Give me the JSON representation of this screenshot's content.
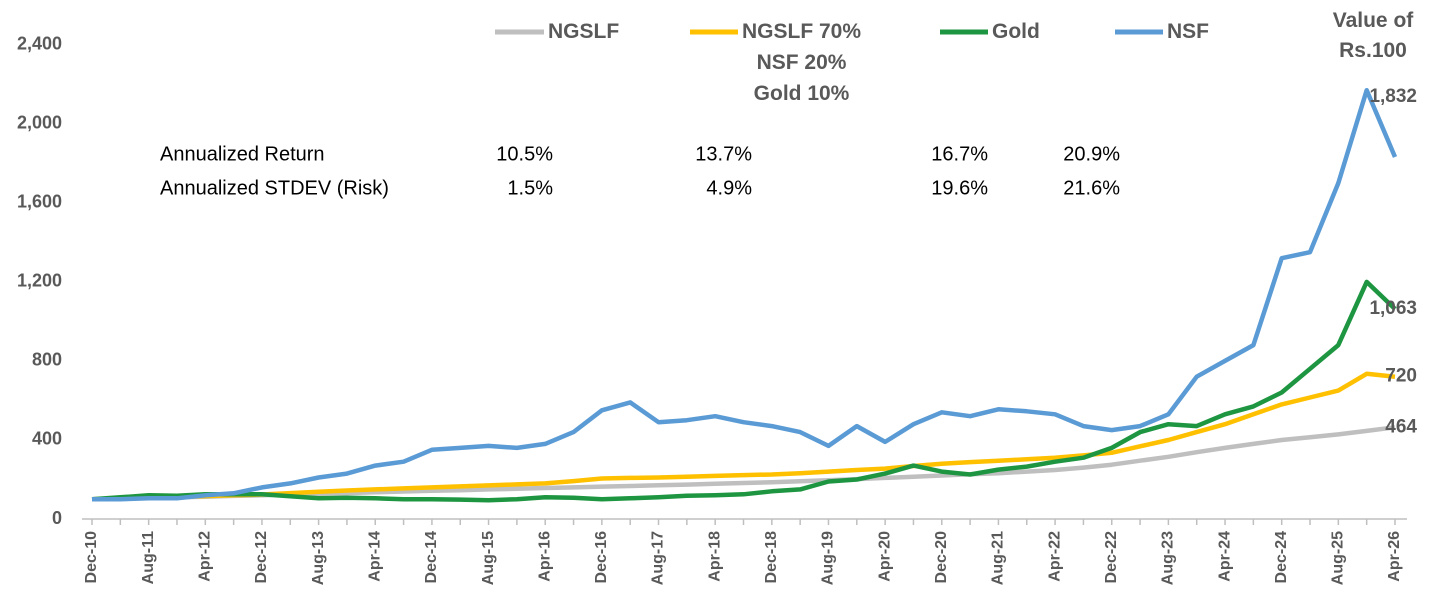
{
  "chart_data": {
    "type": "line",
    "y_axis_label": "Value of Rs.100",
    "categories": [
      "Dec-10",
      null,
      "Aug-11",
      null,
      "Apr-12",
      null,
      "Dec-12",
      null,
      "Aug-13",
      null,
      "Apr-14",
      null,
      "Dec-14",
      null,
      "Aug-15",
      null,
      "Apr-16",
      null,
      "Dec-16",
      null,
      "Aug-17",
      null,
      "Apr-18",
      null,
      "Dec-18",
      null,
      "Aug-19",
      null,
      "Apr-20",
      null,
      "Dec-20",
      null,
      "Aug-21",
      null,
      "Apr-22",
      null,
      "Dec-22",
      null,
      "Aug-23",
      null,
      "Apr-24",
      null,
      "Dec-24",
      null,
      "Aug-25",
      null,
      "Apr-26"
    ],
    "series": [
      {
        "name": "NGSLF",
        "color": "#bfbfbf",
        "values": [
          100,
          103,
          106,
          110,
          113,
          117,
          120,
          124,
          128,
          131,
          135,
          139,
          143,
          146,
          150,
          153,
          157,
          160,
          164,
          167,
          171,
          174,
          178,
          182,
          186,
          191,
          196,
          202,
          208,
          214,
          220,
          226,
          232,
          240,
          248,
          260,
          275,
          295,
          315,
          338,
          360,
          380,
          400,
          414,
          428,
          446,
          464
        ],
        "value_labels": [
          null,
          null,
          null,
          null,
          null,
          null,
          null,
          null,
          null,
          null,
          null,
          null,
          null,
          null,
          null,
          null,
          null,
          null,
          null,
          null,
          null,
          null,
          null,
          null,
          null,
          null,
          null,
          null,
          null,
          null,
          null,
          null,
          null,
          null,
          null,
          null,
          null,
          null,
          null,
          null,
          null,
          null,
          null,
          null,
          null,
          null,
          "464"
        ]
      },
      {
        "name": "NGSLF 70%\nNSF 20%\nGold 10%",
        "color": "#ffc000",
        "values": [
          100,
          104,
          108,
          112,
          116,
          120,
          124,
          131,
          138,
          144,
          150,
          155,
          160,
          165,
          170,
          175,
          180,
          192,
          205,
          208,
          210,
          214,
          218,
          222,
          225,
          232,
          240,
          248,
          255,
          268,
          280,
          288,
          295,
          302,
          310,
          322,
          335,
          368,
          400,
          440,
          480,
          530,
          580,
          615,
          650,
          735,
          720
        ],
        "value_labels": [
          null,
          null,
          null,
          null,
          null,
          null,
          null,
          null,
          null,
          null,
          null,
          null,
          null,
          null,
          null,
          null,
          null,
          null,
          null,
          null,
          null,
          null,
          null,
          null,
          null,
          null,
          null,
          null,
          null,
          null,
          null,
          null,
          null,
          null,
          null,
          null,
          null,
          null,
          null,
          null,
          null,
          null,
          null,
          null,
          null,
          null,
          "720"
        ]
      },
      {
        "name": "Gold",
        "color": "#1e9641",
        "values": [
          100,
          110,
          120,
          118,
          125,
          125,
          125,
          115,
          105,
          108,
          105,
          100,
          100,
          98,
          95,
          100,
          110,
          108,
          100,
          105,
          110,
          118,
          120,
          125,
          140,
          150,
          190,
          200,
          230,
          270,
          240,
          225,
          250,
          265,
          290,
          310,
          360,
          440,
          480,
          470,
          530,
          570,
          640,
          760,
          880,
          1200,
          1063
        ],
        "value_labels": [
          null,
          null,
          null,
          null,
          null,
          null,
          null,
          null,
          null,
          null,
          null,
          null,
          null,
          null,
          null,
          null,
          null,
          null,
          null,
          null,
          null,
          null,
          null,
          null,
          null,
          null,
          null,
          null,
          null,
          null,
          null,
          null,
          null,
          null,
          null,
          null,
          null,
          null,
          null,
          null,
          null,
          null,
          null,
          null,
          null,
          null,
          "1,063"
        ]
      },
      {
        "name": "NSF",
        "color": "#5b9bd5",
        "values": [
          100,
          100,
          105,
          105,
          120,
          130,
          160,
          180,
          210,
          230,
          270,
          290,
          350,
          360,
          370,
          360,
          380,
          440,
          550,
          590,
          490,
          500,
          520,
          490,
          470,
          440,
          370,
          470,
          390,
          480,
          540,
          520,
          555,
          545,
          530,
          470,
          450,
          470,
          530,
          720,
          800,
          880,
          1320,
          1350,
          1700,
          2170,
          1832
        ],
        "value_labels": [
          null,
          null,
          null,
          null,
          null,
          null,
          null,
          null,
          null,
          null,
          null,
          null,
          null,
          null,
          null,
          null,
          null,
          null,
          null,
          null,
          null,
          null,
          null,
          null,
          null,
          null,
          null,
          null,
          null,
          null,
          null,
          null,
          null,
          null,
          null,
          null,
          null,
          null,
          null,
          null,
          null,
          null,
          null,
          null,
          null,
          null,
          "1,832"
        ]
      }
    ],
    "stats": [
      {
        "label": "Annualized Return",
        "values": [
          "10.5%",
          "13.7%",
          "16.7%",
          "20.9%"
        ]
      },
      {
        "label": "Annualized STDEV (Risk)",
        "values": [
          "1.5%",
          "4.9%",
          "19.6%",
          "21.6%"
        ]
      }
    ],
    "ylim": [
      0,
      2500
    ],
    "yticks": [
      0,
      400,
      800,
      {
        "value": 1200,
        "label": "1,200"
      },
      {
        "value": 1600,
        "label": "1,600"
      },
      {
        "value": 2000,
        "label": "2,000"
      },
      {
        "value": 2400,
        "label": "2,400"
      }
    ],
    "grid": false
  }
}
